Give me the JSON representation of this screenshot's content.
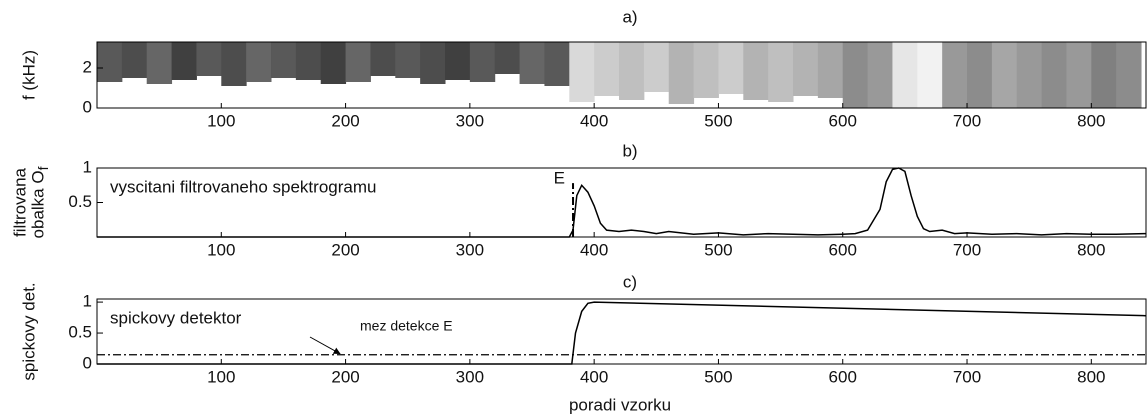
{
  "chart_data": [
    {
      "type": "spectrogram",
      "title": "a)",
      "ylabel": [
        "f (kHz)"
      ],
      "bins": [
        0,
        20,
        40,
        60,
        80,
        100,
        120,
        140,
        160,
        180,
        200,
        220,
        240,
        260,
        280,
        300,
        320,
        340,
        360,
        380,
        400,
        420,
        440,
        460,
        480,
        500,
        520,
        540,
        560,
        580,
        600,
        620,
        640,
        660,
        680,
        700,
        720,
        740,
        760,
        780,
        800,
        820,
        840
      ],
      "floor": [
        1.3,
        1.5,
        1.2,
        1.4,
        1.6,
        1.1,
        1.3,
        1.5,
        1.4,
        1.2,
        1.3,
        1.6,
        1.5,
        1.2,
        1.4,
        1.3,
        1.7,
        1.2,
        1.1,
        0.3,
        0.6,
        0.4,
        0.8,
        0.2,
        0.5,
        0.7,
        0.4,
        0.3,
        0.6,
        0.5,
        0,
        0,
        0,
        0,
        0,
        0,
        0,
        0,
        0,
        0,
        0,
        0
      ],
      "shade": [
        0.35,
        0.3,
        0.4,
        0.25,
        0.35,
        0.3,
        0.4,
        0.35,
        0.3,
        0.25,
        0.4,
        0.3,
        0.35,
        0.3,
        0.25,
        0.35,
        0.3,
        0.4,
        0.35,
        0.85,
        0.8,
        0.75,
        0.8,
        0.7,
        0.75,
        0.8,
        0.7,
        0.75,
        0.7,
        0.65,
        0.55,
        0.6,
        0.9,
        0.95,
        0.6,
        0.55,
        0.65,
        0.6,
        0.55,
        0.6,
        0.5,
        0.55
      ],
      "xlim": [
        0,
        844
      ],
      "xticks": [
        100,
        200,
        300,
        400,
        500,
        600,
        700,
        800
      ],
      "ylim": [
        0,
        3.3
      ],
      "yticks": [
        0,
        2
      ]
    },
    {
      "type": "line",
      "title": "b)",
      "ylabel": [
        "filtrovana",
        "obalka O"
      ],
      "ylabel_subscript": "f",
      "annotation": "vyscitani filtrovaneho spektrogramu",
      "color": "#000",
      "x": [
        0,
        380,
        383,
        386,
        390,
        395,
        400,
        405,
        410,
        420,
        430,
        440,
        450,
        460,
        480,
        500,
        520,
        540,
        560,
        580,
        600,
        610,
        620,
        630,
        635,
        640,
        645,
        650,
        655,
        660,
        665,
        670,
        680,
        690,
        700,
        720,
        740,
        760,
        780,
        800,
        820,
        844
      ],
      "values": [
        0,
        0,
        0.1,
        0.6,
        0.75,
        0.65,
        0.45,
        0.2,
        0.1,
        0.08,
        0.1,
        0.08,
        0.05,
        0.08,
        0.04,
        0.06,
        0.03,
        0.05,
        0.04,
        0.03,
        0.04,
        0.05,
        0.1,
        0.4,
        0.8,
        0.98,
        1.0,
        0.95,
        0.6,
        0.3,
        0.12,
        0.08,
        0.1,
        0.05,
        0.06,
        0.04,
        0.05,
        0.03,
        0.05,
        0.04,
        0.04,
        0.05
      ],
      "events": [
        {
          "label": "E",
          "x": 383,
          "y": 0.78
        }
      ],
      "xlim": [
        0,
        844
      ],
      "xticks": [
        100,
        200,
        300,
        400,
        500,
        600,
        700,
        800
      ],
      "ylim": [
        0,
        1.0
      ],
      "yticks": [
        0.5,
        1
      ]
    },
    {
      "type": "line",
      "title": "c)",
      "ylabel": [
        "spickovy det."
      ],
      "xlabel": "poradi vzorku",
      "annotation": "spickovy detektor",
      "threshold_label": "mez detekce E",
      "threshold": 0.15,
      "color": "#000",
      "x": [
        0,
        382,
        385,
        390,
        395,
        400,
        844
      ],
      "values": [
        0,
        0,
        0.5,
        0.85,
        0.98,
        1.0,
        0.78
      ],
      "xlim": [
        0,
        844
      ],
      "xticks": [
        100,
        200,
        300,
        400,
        500,
        600,
        700,
        800
      ],
      "ylim": [
        0,
        1.05
      ],
      "yticks": [
        0,
        0.5,
        1
      ]
    }
  ]
}
